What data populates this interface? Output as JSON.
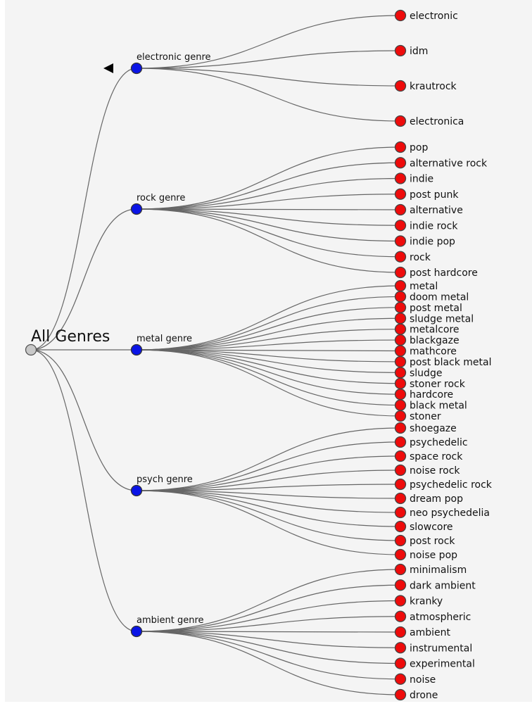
{
  "root": {
    "label": "All Genres"
  },
  "genres": [
    {
      "label": "electronic genre",
      "children": [
        "electronic",
        "idm",
        "krautrock",
        "electronica"
      ]
    },
    {
      "label": "rock genre",
      "children": [
        "pop",
        "alternative rock",
        "indie",
        "post punk",
        "alternative",
        "indie rock",
        "indie pop",
        "rock",
        "post hardcore"
      ]
    },
    {
      "label": "metal genre",
      "children": [
        "metal",
        "doom metal",
        "post metal",
        "sludge metal",
        "metalcore",
        "blackgaze",
        "mathcore",
        "post black metal",
        "sludge",
        "stoner rock",
        "hardcore",
        "black metal",
        "stoner"
      ]
    },
    {
      "label": "psych genre",
      "children": [
        "shoegaze",
        "psychedelic",
        "space rock",
        "noise rock",
        "psychedelic rock",
        "dream pop",
        "neo psychedelia",
        "slowcore",
        "post rock",
        "noise pop"
      ]
    },
    {
      "label": "ambient genre",
      "children": [
        "minimalism",
        "dark ambient",
        "kranky",
        "atmospheric",
        "ambient",
        "instrumental",
        "experimental",
        "noise",
        "drone"
      ]
    }
  ],
  "colors": {
    "root_node": "#c8c8c8",
    "genre_node": "#0a14e6",
    "leaf_node": "#ee0b0b",
    "link": "#666666",
    "background": "#f4f4f4"
  },
  "icons": {
    "collapse": "triangle-left-icon"
  }
}
